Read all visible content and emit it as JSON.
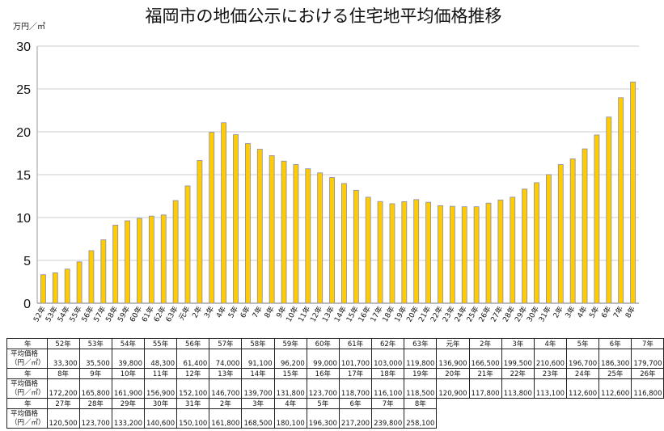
{
  "chart_data": {
    "type": "bar",
    "title": "福岡市の地価公示における住宅地平均価格推移",
    "ylabel": "万円／㎡",
    "ylim": [
      0,
      30
    ],
    "yticks": [
      0,
      5,
      10,
      15,
      20,
      25,
      30
    ],
    "grid": "horizontal",
    "bar_color": "#FFCC00",
    "bar_edge": "#8A8AB0",
    "categories": [
      "52年",
      "53年",
      "54年",
      "55年",
      "56年",
      "57年",
      "58年",
      "59年",
      "60年",
      "61年",
      "62年",
      "63年",
      "元年",
      "2年",
      "3年",
      "4年",
      "5年",
      "6年",
      "7年",
      "8年",
      "9年",
      "10年",
      "11年",
      "12年",
      "13年",
      "14年",
      "15年",
      "16年",
      "17年",
      "18年",
      "19年",
      "20年",
      "21年",
      "22年",
      "23年",
      "24年",
      "25年",
      "26年",
      "27年",
      "28年",
      "29年",
      "30年",
      "31年",
      "2年",
      "3年",
      "4年",
      "5年",
      "6年",
      "7年",
      "8年"
    ],
    "values": [
      3.33,
      3.55,
      3.98,
      4.83,
      6.14,
      7.4,
      9.11,
      9.62,
      9.9,
      10.17,
      10.3,
      11.98,
      13.69,
      16.65,
      19.95,
      21.06,
      19.67,
      18.63,
      17.97,
      17.22,
      16.58,
      16.19,
      15.69,
      15.21,
      14.67,
      13.97,
      13.18,
      12.37,
      11.87,
      11.61,
      11.85,
      12.09,
      11.78,
      11.38,
      11.31,
      11.26,
      11.26,
      11.68,
      12.05,
      12.37,
      13.32,
      14.06,
      15.01,
      16.18,
      16.85,
      18.01,
      19.63,
      21.72,
      23.98,
      25.81
    ]
  },
  "table": {
    "year_header": "年",
    "price_header_1": "平均価格",
    "price_header_2": "（円／㎡）",
    "prices": [
      "33,300",
      "35,500",
      "39,800",
      "48,300",
      "61,400",
      "74,000",
      "91,100",
      "96,200",
      "99,000",
      "101,700",
      "103,000",
      "119,800",
      "136,900",
      "166,500",
      "199,500",
      "210,600",
      "196,700",
      "186,300",
      "179,700",
      "172,200",
      "165,800",
      "161,900",
      "156,900",
      "152,100",
      "146,700",
      "139,700",
      "131,800",
      "123,700",
      "118,700",
      "116,100",
      "118,500",
      "120,900",
      "117,800",
      "113,800",
      "113,100",
      "112,600",
      "112,600",
      "116,800",
      "120,500",
      "123,700",
      "133,200",
      "140,600",
      "150,100",
      "161,800",
      "168,500",
      "180,100",
      "196,300",
      "217,200",
      "239,800",
      "258,100"
    ]
  }
}
